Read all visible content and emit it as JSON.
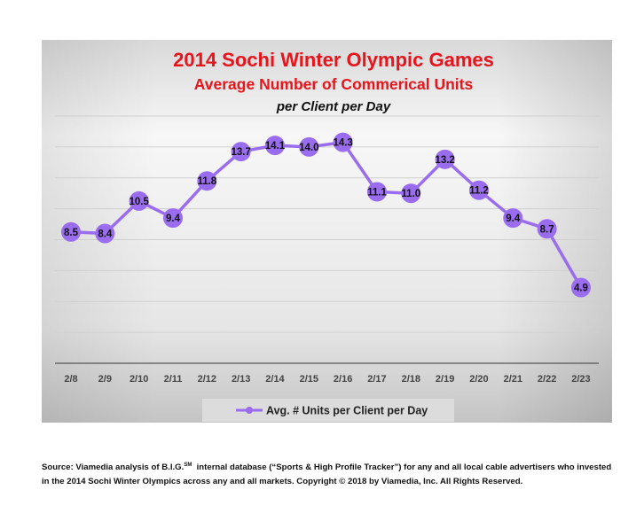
{
  "chart_data": {
    "type": "line",
    "title": "2014 Sochi Winter Olympic Games",
    "subtitle": "Average Number of Commerical Units",
    "subtitle2": "per Client per Day",
    "categories": [
      "2/8",
      "2/9",
      "2/10",
      "2/11",
      "2/12",
      "2/13",
      "2/14",
      "2/15",
      "2/16",
      "2/17",
      "2/18",
      "2/19",
      "2/20",
      "2/21",
      "2/22",
      "2/23"
    ],
    "series": [
      {
        "name": "Avg. # Units per Client per Day",
        "values": [
          8.5,
          8.4,
          10.5,
          9.4,
          11.8,
          13.7,
          14.1,
          14.0,
          14.3,
          11.1,
          11.0,
          13.2,
          11.2,
          9.4,
          8.7,
          4.9
        ]
      }
    ],
    "ylim": [
      0,
      16
    ],
    "grid": true,
    "y_ticks_labeled": false,
    "legend_position": "bottom",
    "colors": {
      "title": "#e8141b",
      "series": "#9a6cf0",
      "background_top": "#ffffff",
      "background_bottom": "#c8c8c8"
    }
  },
  "footnote": {
    "line1_pre": "Source: Viamedia analysis of B.I.G.",
    "line1_sup": "SM",
    "line1_post": "  internal database (“Sports & High Profile Tracker”) for any and all local cable advertisers who invested",
    "line2": "in the 2014 Sochi Winter Olympics across any and all markets. Copyright © 2018 by Viamedia, Inc. All Rights Reserved."
  }
}
